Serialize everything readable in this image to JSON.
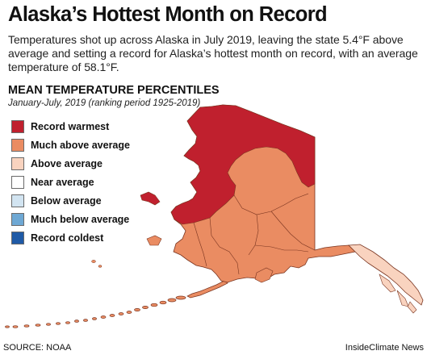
{
  "title": "Alaska’s Hottest Month on Record",
  "subtitle": "Temperatures shot up across Alaska in July 2019, leaving the state 5.4°F above average and setting a record for Alaska’s hottest month on record, with an average temperature of 58.1°F.",
  "legend": {
    "title": "MEAN TEMPERATURE PERCENTILES",
    "subtitle": "January-July, 2019 (ranking period 1925-2019)",
    "items": [
      {
        "label": "Record warmest",
        "color": "#c0202e"
      },
      {
        "label": "Much above average",
        "color": "#ea8c62"
      },
      {
        "label": "Above average",
        "color": "#f9d3bf"
      },
      {
        "label": "Near average",
        "color": "#ffffff"
      },
      {
        "label": "Below average",
        "color": "#d2e4f1"
      },
      {
        "label": "Much below average",
        "color": "#6ea8d4"
      },
      {
        "label": "Record coldest",
        "color": "#1f5aa6"
      }
    ]
  },
  "map": {
    "region": "Alaska",
    "categories_shown": [
      "Record warmest",
      "Much above average",
      "Above average"
    ]
  },
  "source": "SOURCE: NOAA",
  "credit": "InsideClimate News"
}
